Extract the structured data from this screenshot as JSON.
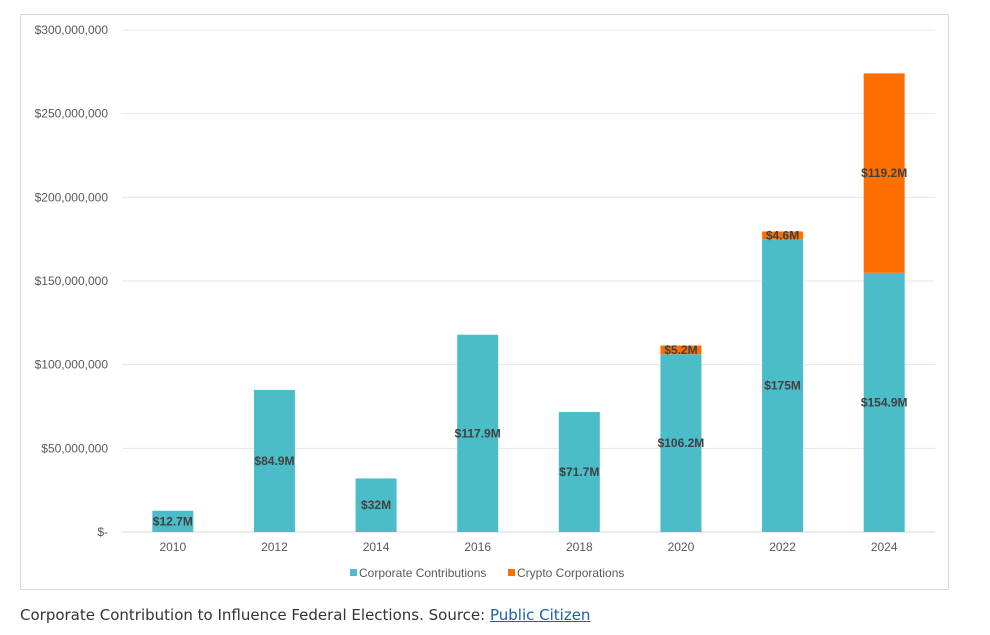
{
  "chart_data": {
    "type": "bar",
    "stacked": true,
    "categories": [
      "2010",
      "2012",
      "2014",
      "2016",
      "2018",
      "2020",
      "2022",
      "2024"
    ],
    "series": [
      {
        "name": "Corporate Contributions",
        "color": "#4bbdc8",
        "values": [
          12700000,
          84900000,
          32000000,
          117900000,
          71700000,
          106200000,
          175000000,
          154900000
        ],
        "labels": [
          "$12.7M",
          "$84.9M",
          "$32M",
          "$117.9M",
          "$71.7M",
          "$106.2M",
          "$175M",
          "$154.9M"
        ]
      },
      {
        "name": "Crypto Corporations",
        "color": "#ff6f00",
        "values": [
          0,
          0,
          0,
          0,
          0,
          5200000,
          4600000,
          119200000
        ],
        "labels": [
          "",
          "",
          "",
          "",
          "",
          "$5.2M",
          "$4.6M",
          "$119.2M"
        ]
      }
    ],
    "ylim": [
      0,
      300000000
    ],
    "yticks": [
      0,
      50000000,
      100000000,
      150000000,
      200000000,
      250000000,
      300000000
    ],
    "ytick_labels": [
      "$-",
      "$50,000,000",
      "$100,000,000",
      "$150,000,000",
      "$200,000,000",
      "$250,000,000",
      "$300,000,000"
    ],
    "grid": true,
    "legend_position": "bottom"
  },
  "caption": {
    "text": "Corporate Contribution to Influence Federal Elections. Source: ",
    "link_text": "Public Citizen"
  }
}
